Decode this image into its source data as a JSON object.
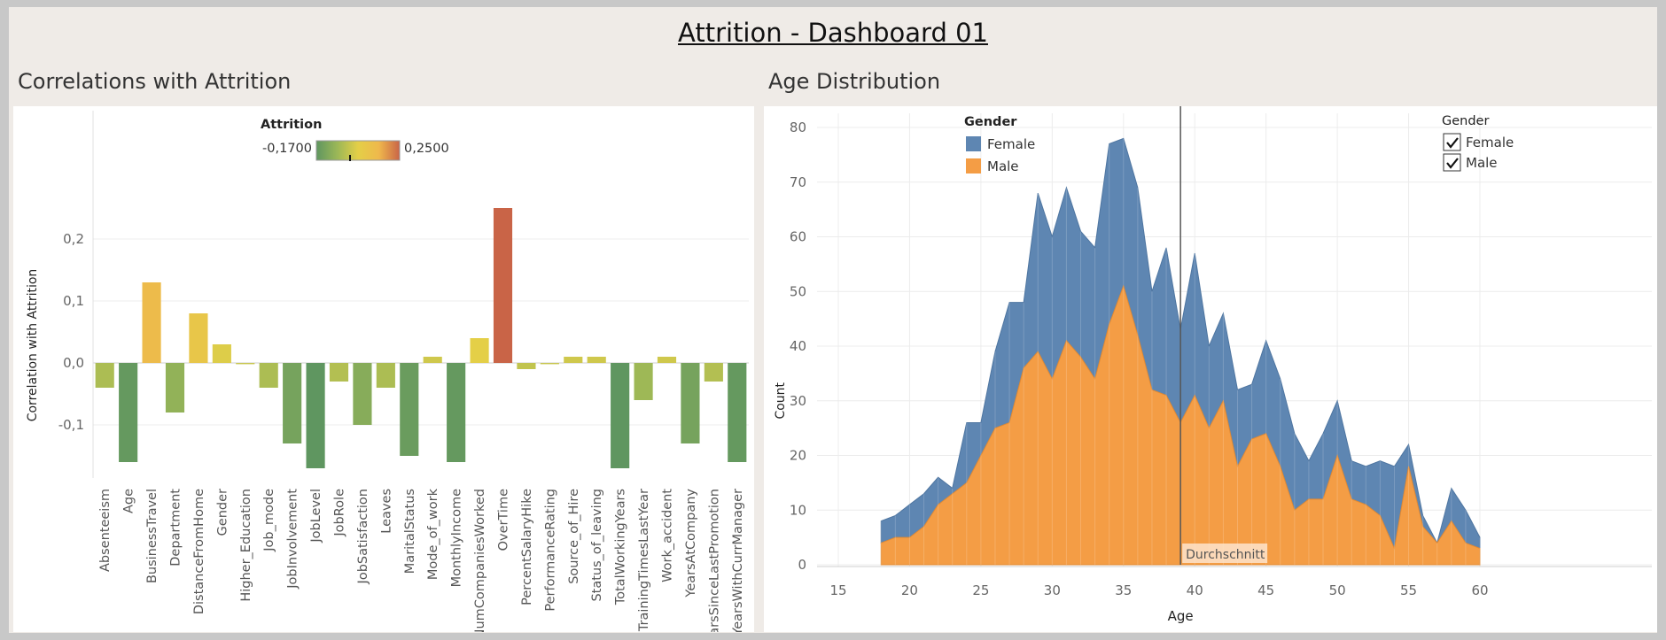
{
  "dashboard_title": "Attrition - Dashboard 01",
  "left_sheet": {
    "title": "Correlations with Attrition"
  },
  "right_sheet": {
    "title": "Age Distribution"
  },
  "color_legend": {
    "title": "Attrition",
    "min_label": "-0,1700",
    "max_label": "0,2500",
    "colors": [
      "#5f9660",
      "#9bb757",
      "#e4cf47",
      "#efb84c",
      "#c96447"
    ]
  },
  "gender_legend": {
    "title": "Gender",
    "items": [
      {
        "label": "Female",
        "color": "#5e86b2"
      },
      {
        "label": "Male",
        "color": "#f49d45"
      }
    ]
  },
  "gender_filter": {
    "title": "Gender",
    "items": [
      {
        "label": "Female",
        "checked": true
      },
      {
        "label": "Male",
        "checked": true
      }
    ]
  },
  "reference_line": {
    "label": "Durchschnitt",
    "x": 39
  },
  "chart_data": [
    {
      "type": "bar",
      "ylabel": "Correlation with Attrition",
      "xlabel": "",
      "ylim": [
        -0.17,
        0.25
      ],
      "yticks": [
        {
          "value": 0.2,
          "label": "0,2"
        },
        {
          "value": 0.1,
          "label": "0,1"
        },
        {
          "value": 0.0,
          "label": "0,0"
        },
        {
          "value": -0.1,
          "label": "-0,1"
        }
      ],
      "categories": [
        "Absenteeism",
        "Age",
        "BusinessTravel",
        "Department",
        "DistanceFromHome",
        "Gender",
        "Higher_Education",
        "Job_mode",
        "JobInvolvement",
        "JobLevel",
        "JobRole",
        "JobSatisfaction",
        "Leaves",
        "MaritalStatus",
        "Mode_of_work",
        "MonthlyIncome",
        "NumCompaniesWorked",
        "OverTime",
        "PercentSalaryHike",
        "PerformanceRating",
        "Source_of_Hire",
        "Status_of_leaving",
        "TotalWorkingYears",
        "TrainingTimesLastYear",
        "Work_accident",
        "YearsAtCompany",
        "YearsSinceLastPromotion",
        "YearsWithCurrManager"
      ],
      "values": [
        -0.04,
        -0.16,
        0.13,
        -0.08,
        0.08,
        0.03,
        -0.002,
        -0.04,
        -0.13,
        -0.17,
        -0.03,
        -0.1,
        -0.04,
        -0.15,
        0.01,
        -0.16,
        0.04,
        0.25,
        -0.01,
        -0.002,
        0.01,
        0.01,
        -0.17,
        -0.06,
        0.01,
        -0.13,
        -0.03,
        -0.16
      ]
    },
    {
      "type": "area",
      "stacked": true,
      "xlabel": "Age",
      "ylabel": "Count",
      "xlim": [
        14,
        62
      ],
      "ylim": [
        0,
        82
      ],
      "xticks": [
        15,
        20,
        25,
        30,
        35,
        40,
        45,
        50,
        55,
        60
      ],
      "yticks": [
        0,
        10,
        20,
        30,
        40,
        50,
        60,
        70,
        80
      ],
      "x": [
        18,
        19,
        20,
        21,
        22,
        23,
        24,
        25,
        26,
        27,
        28,
        29,
        30,
        31,
        32,
        33,
        34,
        35,
        36,
        37,
        38,
        39,
        40,
        41,
        42,
        43,
        44,
        45,
        46,
        47,
        48,
        49,
        50,
        51,
        52,
        53,
        54,
        55,
        56,
        57,
        58,
        59,
        60
      ],
      "series": [
        {
          "name": "Male",
          "values": [
            4,
            5,
            5,
            7,
            11,
            13,
            15,
            20,
            25,
            26,
            36,
            39,
            34,
            41,
            38,
            34,
            44,
            51,
            42,
            32,
            31,
            26,
            31,
            25,
            30,
            18,
            23,
            24,
            18,
            10,
            12,
            12,
            20,
            12,
            11,
            9,
            3,
            18,
            7,
            4,
            8,
            4,
            3
          ]
        },
        {
          "name": "Female",
          "values": [
            4,
            4,
            6,
            6,
            5,
            1,
            11,
            6,
            14,
            22,
            12,
            29,
            26,
            28,
            23,
            24,
            33,
            27,
            27,
            18,
            27,
            17,
            26,
            15,
            16,
            14,
            10,
            17,
            16,
            14,
            7,
            12,
            10,
            7,
            7,
            10,
            15,
            4,
            2,
            0,
            6,
            6,
            2
          ]
        }
      ]
    }
  ]
}
